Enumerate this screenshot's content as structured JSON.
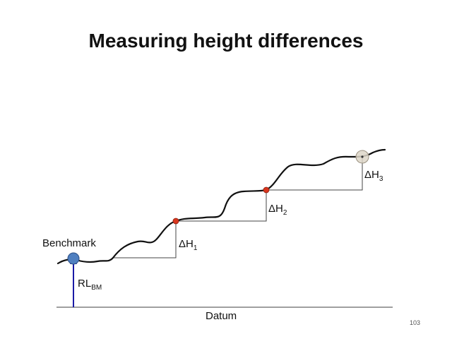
{
  "slide": {
    "title": "Measuring height differences",
    "page_number": "103"
  },
  "diagram": {
    "benchmark_label": "Benchmark",
    "rl_label": {
      "base": "RL",
      "sub": "BM"
    },
    "datum_label": "Datum",
    "delta_labels": [
      {
        "base": "ΔH",
        "sub": "1"
      },
      {
        "base": "ΔH",
        "sub": "2"
      },
      {
        "base": "ΔH",
        "sub": "3"
      }
    ],
    "colors": {
      "terrain": "#111111",
      "step_lines": "#444444",
      "rl_arrow": "#1a1aa6",
      "benchmark_fill": "#4f7fc0",
      "point_fill": "#d9361e",
      "end_marker_fill": "#ddd6c8"
    }
  }
}
